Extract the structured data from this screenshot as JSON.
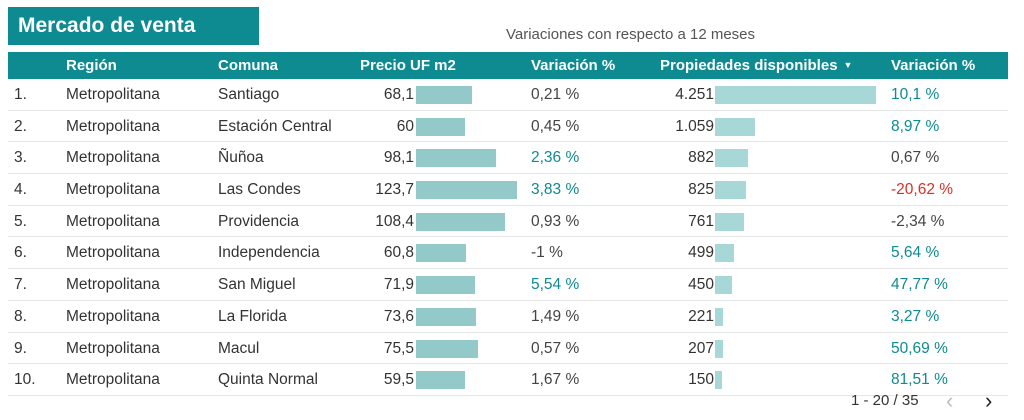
{
  "title": "Mercado de venta",
  "subtitle": "Variaciones con respecto a 12 meses",
  "columns": {
    "region": "Región",
    "comuna": "Comuna",
    "precio": "Precio UF m2",
    "variacion1": "Variación %",
    "propiedades": "Propiedades disponibles",
    "variacion2": "Variación %"
  },
  "colors": {
    "accent": "#0e8a91",
    "bar": "#93c9c9",
    "negative": "#d93025"
  },
  "rows": [
    {
      "num": "1.",
      "region": "Metropolitana",
      "comuna": "Santiago",
      "precio": "68,1",
      "precio_value": 68.1,
      "var1": "0,21 %",
      "var1_tone": "grey",
      "props": "4.251",
      "props_value": 4251,
      "var2": "10,1 %",
      "var2_tone": "teal"
    },
    {
      "num": "2.",
      "region": "Metropolitana",
      "comuna": "Estación Central",
      "precio": "60",
      "precio_value": 60,
      "var1": "0,45 %",
      "var1_tone": "grey",
      "props": "1.059",
      "props_value": 1059,
      "var2": "8,97 %",
      "var2_tone": "teal"
    },
    {
      "num": "3.",
      "region": "Metropolitana",
      "comuna": "Ñuñoa",
      "precio": "98,1",
      "precio_value": 98.1,
      "var1": "2,36 %",
      "var1_tone": "teal",
      "props": "882",
      "props_value": 882,
      "var2": "0,67 %",
      "var2_tone": "grey"
    },
    {
      "num": "4.",
      "region": "Metropolitana",
      "comuna": "Las Condes",
      "precio": "123,7",
      "precio_value": 123.7,
      "var1": "3,83 %",
      "var1_tone": "teal",
      "props": "825",
      "props_value": 825,
      "var2": "-20,62 %",
      "var2_tone": "red"
    },
    {
      "num": "5.",
      "region": "Metropolitana",
      "comuna": "Providencia",
      "precio": "108,4",
      "precio_value": 108.4,
      "var1": "0,93 %",
      "var1_tone": "grey",
      "props": "761",
      "props_value": 761,
      "var2": "-2,34 %",
      "var2_tone": "grey"
    },
    {
      "num": "6.",
      "region": "Metropolitana",
      "comuna": "Independencia",
      "precio": "60,8",
      "precio_value": 60.8,
      "var1": "-1 %",
      "var1_tone": "grey",
      "props": "499",
      "props_value": 499,
      "var2": "5,64 %",
      "var2_tone": "teal"
    },
    {
      "num": "7.",
      "region": "Metropolitana",
      "comuna": "San Miguel",
      "precio": "71,9",
      "precio_value": 71.9,
      "var1": "5,54 %",
      "var1_tone": "teal",
      "props": "450",
      "props_value": 450,
      "var2": "47,77 %",
      "var2_tone": "teal"
    },
    {
      "num": "8.",
      "region": "Metropolitana",
      "comuna": "La Florida",
      "precio": "73,6",
      "precio_value": 73.6,
      "var1": "1,49 %",
      "var1_tone": "grey",
      "props": "221",
      "props_value": 221,
      "var2": "3,27 %",
      "var2_tone": "teal"
    },
    {
      "num": "9.",
      "region": "Metropolitana",
      "comuna": "Macul",
      "precio": "75,5",
      "precio_value": 75.5,
      "var1": "0,57 %",
      "var1_tone": "grey",
      "props": "207",
      "props_value": 207,
      "var2": "50,69 %",
      "var2_tone": "teal"
    },
    {
      "num": "10.",
      "region": "Metropolitana",
      "comuna": "Quinta Normal",
      "precio": "59,5",
      "precio_value": 59.5,
      "var1": "1,67 %",
      "var1_tone": "grey",
      "props": "150",
      "props_value": 150,
      "var2": "81,51 %",
      "var2_tone": "teal"
    }
  ],
  "pagination": {
    "label": "1 - 20 / 35",
    "prev_icon": "chevron-left-icon",
    "next_icon": "chevron-right-icon"
  }
}
